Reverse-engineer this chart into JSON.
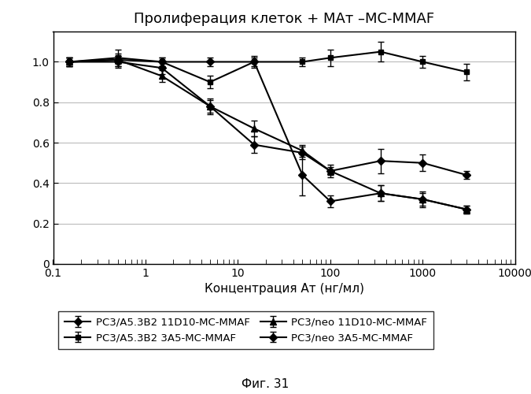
{
  "title": "Пролиферация клеток + МАт –MC-MMAF",
  "xlabel": "Концентрация Ат (нг/мл)",
  "figcaption": "Фиг. 31",
  "xlim": [
    0.1,
    10000
  ],
  "ylim": [
    0,
    1.15
  ],
  "yticks": [
    0,
    0.2,
    0.4,
    0.6,
    0.8,
    1.0
  ],
  "series": [
    {
      "label": "PC3/A5.3B2 11D10-MC-MMAF",
      "x": [
        0.15,
        0.5,
        1.5,
        5,
        15,
        50,
        100,
        350,
        1000,
        3000
      ],
      "y": [
        1.0,
        1.0,
        0.97,
        0.78,
        0.59,
        0.55,
        0.46,
        0.51,
        0.5,
        0.44
      ],
      "yerr": [
        0.02,
        0.03,
        0.03,
        0.03,
        0.04,
        0.03,
        0.02,
        0.06,
        0.04,
        0.02
      ],
      "marker": "D",
      "markersize": 5
    },
    {
      "label": "PC3/A5.3B2 3A5-MC-MMAF",
      "x": [
        0.15,
        0.5,
        1.5,
        5,
        15,
        50,
        100,
        350,
        1000,
        3000
      ],
      "y": [
        1.0,
        1.02,
        1.0,
        0.9,
        1.0,
        1.0,
        1.02,
        1.05,
        1.0,
        0.95
      ],
      "yerr": [
        0.02,
        0.04,
        0.02,
        0.03,
        0.02,
        0.02,
        0.04,
        0.05,
        0.03,
        0.04
      ],
      "marker": "s",
      "markersize": 5
    },
    {
      "label": "PC3/neo 11D10-MC-MMAF",
      "x": [
        0.15,
        0.5,
        1.5,
        5,
        15,
        50,
        100,
        350,
        1000,
        3000
      ],
      "y": [
        1.0,
        1.01,
        0.93,
        0.78,
        0.67,
        0.56,
        0.46,
        0.35,
        0.32,
        0.27
      ],
      "yerr": [
        0.02,
        0.03,
        0.03,
        0.04,
        0.04,
        0.03,
        0.03,
        0.04,
        0.04,
        0.02
      ],
      "marker": "^",
      "markersize": 6
    },
    {
      "label": "PC3/neo 3A5-MC-MMAF",
      "x": [
        0.15,
        0.5,
        1.5,
        5,
        15,
        50,
        100,
        350,
        1000,
        3000
      ],
      "y": [
        1.0,
        1.01,
        1.0,
        1.0,
        1.0,
        0.44,
        0.31,
        0.35,
        0.32,
        0.27
      ],
      "yerr": [
        0.02,
        0.02,
        0.02,
        0.02,
        0.03,
        0.1,
        0.03,
        0.04,
        0.03,
        0.02
      ],
      "marker": "D",
      "markersize": 5
    }
  ],
  "markers": [
    "D",
    "s",
    "^",
    "D"
  ],
  "line_color": "#000000",
  "background_color": "#ffffff",
  "grid_color": "#bbbbbb",
  "title_fontsize": 13,
  "label_fontsize": 11,
  "tick_fontsize": 10,
  "legend_fontsize": 9.5
}
